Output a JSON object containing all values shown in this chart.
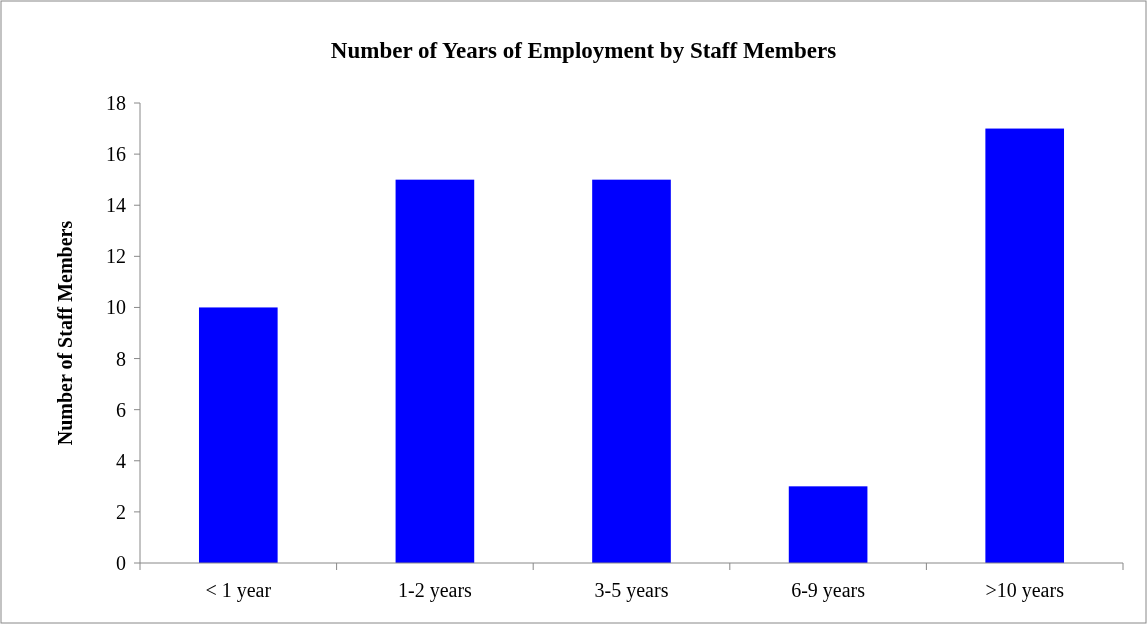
{
  "chart_data": {
    "type": "bar",
    "title": "Number of Years of Employment by Staff Members",
    "ylabel": "Number of Staff Members",
    "categories": [
      "< 1 year",
      "1-2 years",
      "3-5 years",
      "6-9 years",
      ">10 years"
    ],
    "values": [
      10,
      15,
      15,
      3,
      17
    ],
    "color": "#0000ff",
    "ylim": [
      0,
      18
    ],
    "yticks": [
      0,
      2,
      4,
      6,
      8,
      10,
      12,
      14,
      16,
      18
    ],
    "grid": false
  }
}
